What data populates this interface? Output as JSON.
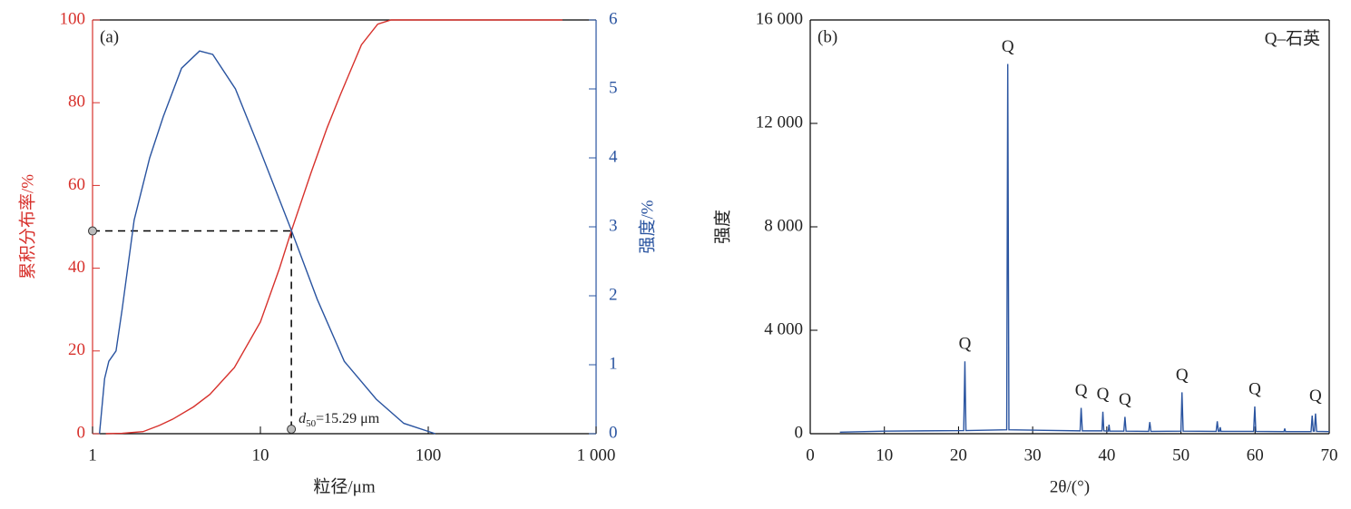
{
  "chart_data": [
    {
      "type": "line",
      "panel_label": "(a)",
      "x_label": "粒径/μm",
      "y_label": "累积分布率/%",
      "y2_label": "强度/%",
      "xscale": "log",
      "xlim": [
        1,
        1000
      ],
      "xticks": [
        1,
        10,
        100,
        {
          "value": 1000,
          "label": "1 000"
        }
      ],
      "ylim": [
        0,
        100
      ],
      "yticks": [
        0,
        20,
        40,
        60,
        80,
        100
      ],
      "y2lim": [
        0,
        6
      ],
      "y2ticks": [
        0,
        1,
        2,
        3,
        4,
        5,
        6
      ],
      "y_axis_color": "#d7312c",
      "y2_axis_color": "#2a54a0",
      "series": [
        {
          "color": "#d7312c",
          "x": [
            1.2,
            1.5,
            2,
            2.5,
            3,
            4,
            5,
            7,
            10,
            13,
            15.29,
            20,
            25,
            30,
            40,
            50,
            60,
            100,
            300,
            630
          ],
          "values": [
            0,
            0.1,
            0.5,
            2,
            3.5,
            6.5,
            9.5,
            16,
            27,
            40,
            49,
            63,
            74,
            82,
            94,
            99,
            100,
            100,
            100,
            100
          ]
        },
        {
          "color": "#2a54a0",
          "axis": "y2",
          "x": [
            1.1,
            1.18,
            1.25,
            1.38,
            1.5,
            1.77,
            2.19,
            2.64,
            3.39,
            4.34,
            5.2,
            7.1,
            10,
            15.29,
            21.8,
            31.6,
            49,
            71.5,
            110
          ],
          "values": [
            0,
            0.8,
            1.05,
            1.2,
            1.8,
            3.1,
            4.0,
            4.6,
            5.3,
            5.55,
            5.5,
            5.0,
            4.1,
            2.95,
            1.95,
            1.05,
            0.5,
            0.15,
            0
          ]
        }
      ],
      "reference": {
        "x": 15.29,
        "y": 49,
        "label_var": "d",
        "label_sub": "50",
        "label_text": "=15.29 μm"
      }
    },
    {
      "type": "line",
      "panel_label": "(b)",
      "note": "Q–石英",
      "x_label": "2θ/(°)",
      "y_label": "强度",
      "xlim": [
        0,
        70
      ],
      "xticks": [
        0,
        10,
        20,
        30,
        40,
        50,
        60,
        70
      ],
      "ylim": [
        0,
        16000
      ],
      "yticks": [
        0,
        {
          "value": 4000,
          "label": "4 000"
        },
        {
          "value": 8000,
          "label": "8 000"
        },
        {
          "value": 12000,
          "label": "12 000"
        },
        {
          "value": 16000,
          "label": "16 000"
        }
      ],
      "series": [
        {
          "color": "#2a54a0",
          "x": [
            4,
            10,
            20.7,
            20.86,
            21.0,
            26.5,
            26.64,
            26.8,
            36.4,
            36.54,
            36.7,
            39.35,
            39.47,
            39.6,
            40.2,
            40.3,
            40.4,
            42.3,
            42.45,
            42.6,
            45.65,
            45.8,
            45.95,
            50.0,
            50.14,
            50.3,
            54.75,
            54.9,
            55.05,
            55.2,
            55.3,
            55.4,
            59.8,
            59.96,
            60.1,
            63.9,
            64.0,
            64.1,
            67.55,
            67.7,
            67.85,
            68.0,
            68.15,
            68.3,
            70
          ],
          "values": [
            60,
            100,
            120,
            2800,
            120,
            150,
            14300,
            150,
            110,
            1000,
            110,
            110,
            850,
            110,
            100,
            350,
            100,
            100,
            650,
            100,
            90,
            450,
            90,
            100,
            1600,
            100,
            90,
            480,
            90,
            90,
            250,
            90,
            90,
            1050,
            90,
            80,
            200,
            80,
            80,
            700,
            100,
            100,
            780,
            90,
            80
          ]
        }
      ],
      "annotations": [
        {
          "text": "Q",
          "x": 20.86
        },
        {
          "text": "Q",
          "x": 26.64
        },
        {
          "text": "Q",
          "x": 36.54
        },
        {
          "text": "Q",
          "x": 39.47
        },
        {
          "text": "Q",
          "x": 42.45
        },
        {
          "text": "Q",
          "x": 50.14
        },
        {
          "text": "Q",
          "x": 59.96
        },
        {
          "text": "Q",
          "x": 68.15
        }
      ]
    }
  ]
}
